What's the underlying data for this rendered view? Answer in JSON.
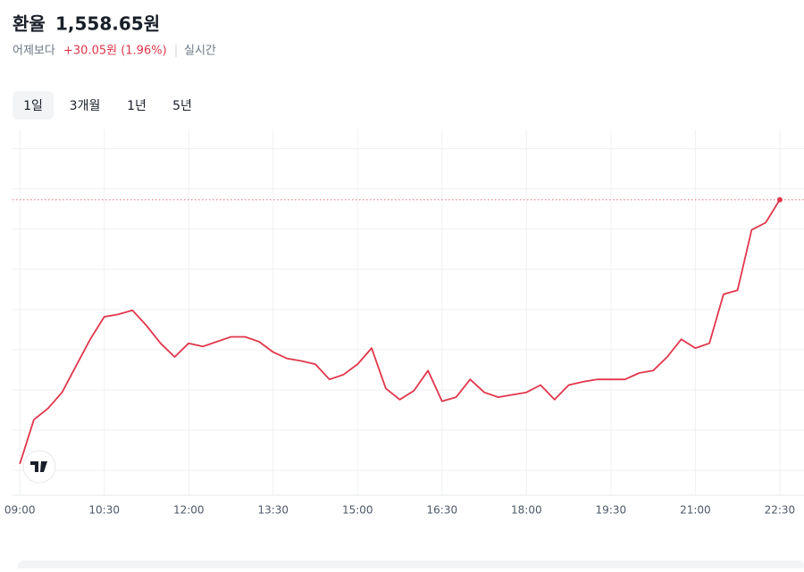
{
  "header": {
    "title": "환율",
    "price": "1,558.65원",
    "change_prefix": "어제보다",
    "change": "+30.05원 (1.96%)",
    "mode": "실시간"
  },
  "tabs": [
    "1일",
    "3개월",
    "1년",
    "5년"
  ],
  "chart_data": {
    "type": "line",
    "color": "#e0364b",
    "grid": true,
    "x": [
      9.0,
      9.25,
      9.5,
      9.75,
      10.0,
      10.25,
      10.5,
      10.75,
      11.0,
      11.25,
      11.5,
      11.75,
      12.0,
      12.25,
      12.5,
      12.75,
      13.0,
      13.25,
      13.5,
      13.75,
      14.0,
      14.25,
      14.5,
      14.75,
      15.0,
      15.25,
      15.5,
      15.75,
      16.0,
      16.25,
      16.5,
      16.75,
      17.0,
      17.25,
      17.5,
      17.75,
      18.0,
      18.25,
      18.5,
      18.75,
      19.0,
      19.25,
      19.5,
      19.75,
      20.0,
      20.25,
      20.5,
      20.75,
      21.0,
      21.25,
      21.5,
      21.75,
      22.0,
      22.25,
      22.5
    ],
    "values": [
      1525.8,
      1531.3,
      1532.7,
      1534.7,
      1538.0,
      1541.3,
      1544.1,
      1544.4,
      1544.9,
      1543.0,
      1540.8,
      1539.1,
      1540.8,
      1540.4,
      1541.0,
      1541.6,
      1541.6,
      1541.0,
      1539.7,
      1538.9,
      1538.6,
      1538.2,
      1536.3,
      1536.9,
      1538.2,
      1540.2,
      1535.2,
      1533.8,
      1534.9,
      1537.4,
      1533.6,
      1534.1,
      1536.3,
      1534.7,
      1534.1,
      1534.4,
      1534.7,
      1535.6,
      1533.8,
      1535.6,
      1536.0,
      1536.3,
      1536.3,
      1536.3,
      1537.1,
      1537.4,
      1539.1,
      1541.3,
      1540.2,
      1540.8,
      1546.9,
      1547.4,
      1554.9,
      1555.8,
      1558.65
    ],
    "xlim": [
      8.87,
      22.93
    ],
    "ylim": [
      1521.9,
      1567.4
    ],
    "xticks": [
      {
        "value": 9,
        "label": "09:00"
      },
      {
        "value": 10.5,
        "label": "10:30"
      },
      {
        "value": 12,
        "label": "12:00"
      },
      {
        "value": 13.5,
        "label": "13:30"
      },
      {
        "value": 15,
        "label": "15:00"
      },
      {
        "value": 16.5,
        "label": "16:30"
      },
      {
        "value": 18,
        "label": "18:00"
      },
      {
        "value": 19.5,
        "label": "19:30"
      },
      {
        "value": 21,
        "label": "21:00"
      },
      {
        "value": 22.5,
        "label": "22:30"
      }
    ],
    "gridlines": [
      1525,
      1530,
      1535,
      1540,
      1545,
      1550,
      1555,
      1560,
      1565
    ]
  }
}
